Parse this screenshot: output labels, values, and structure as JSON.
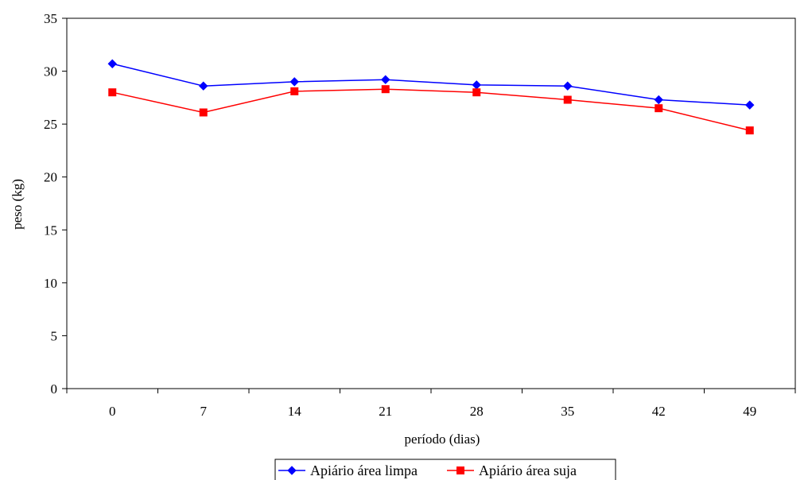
{
  "chart_data": {
    "type": "line",
    "title": "",
    "xlabel": "período (dias)",
    "ylabel": "peso (kg)",
    "categories": [
      "0",
      "7",
      "14",
      "21",
      "28",
      "35",
      "42",
      "49"
    ],
    "ylim": [
      0,
      35
    ],
    "yticks": [
      0,
      5,
      10,
      15,
      20,
      25,
      30,
      35
    ],
    "grid": false,
    "legend_position": "bottom",
    "series": [
      {
        "name": "Apiário área limpa",
        "values": [
          30.7,
          28.6,
          29.0,
          29.2,
          28.7,
          28.6,
          27.3,
          26.8
        ],
        "color": "#0000ff",
        "marker": "diamond"
      },
      {
        "name": "Apiário área suja",
        "values": [
          28.0,
          26.1,
          28.1,
          28.3,
          28.0,
          27.3,
          26.5,
          24.4
        ],
        "color": "#ff0000",
        "marker": "square"
      }
    ]
  }
}
